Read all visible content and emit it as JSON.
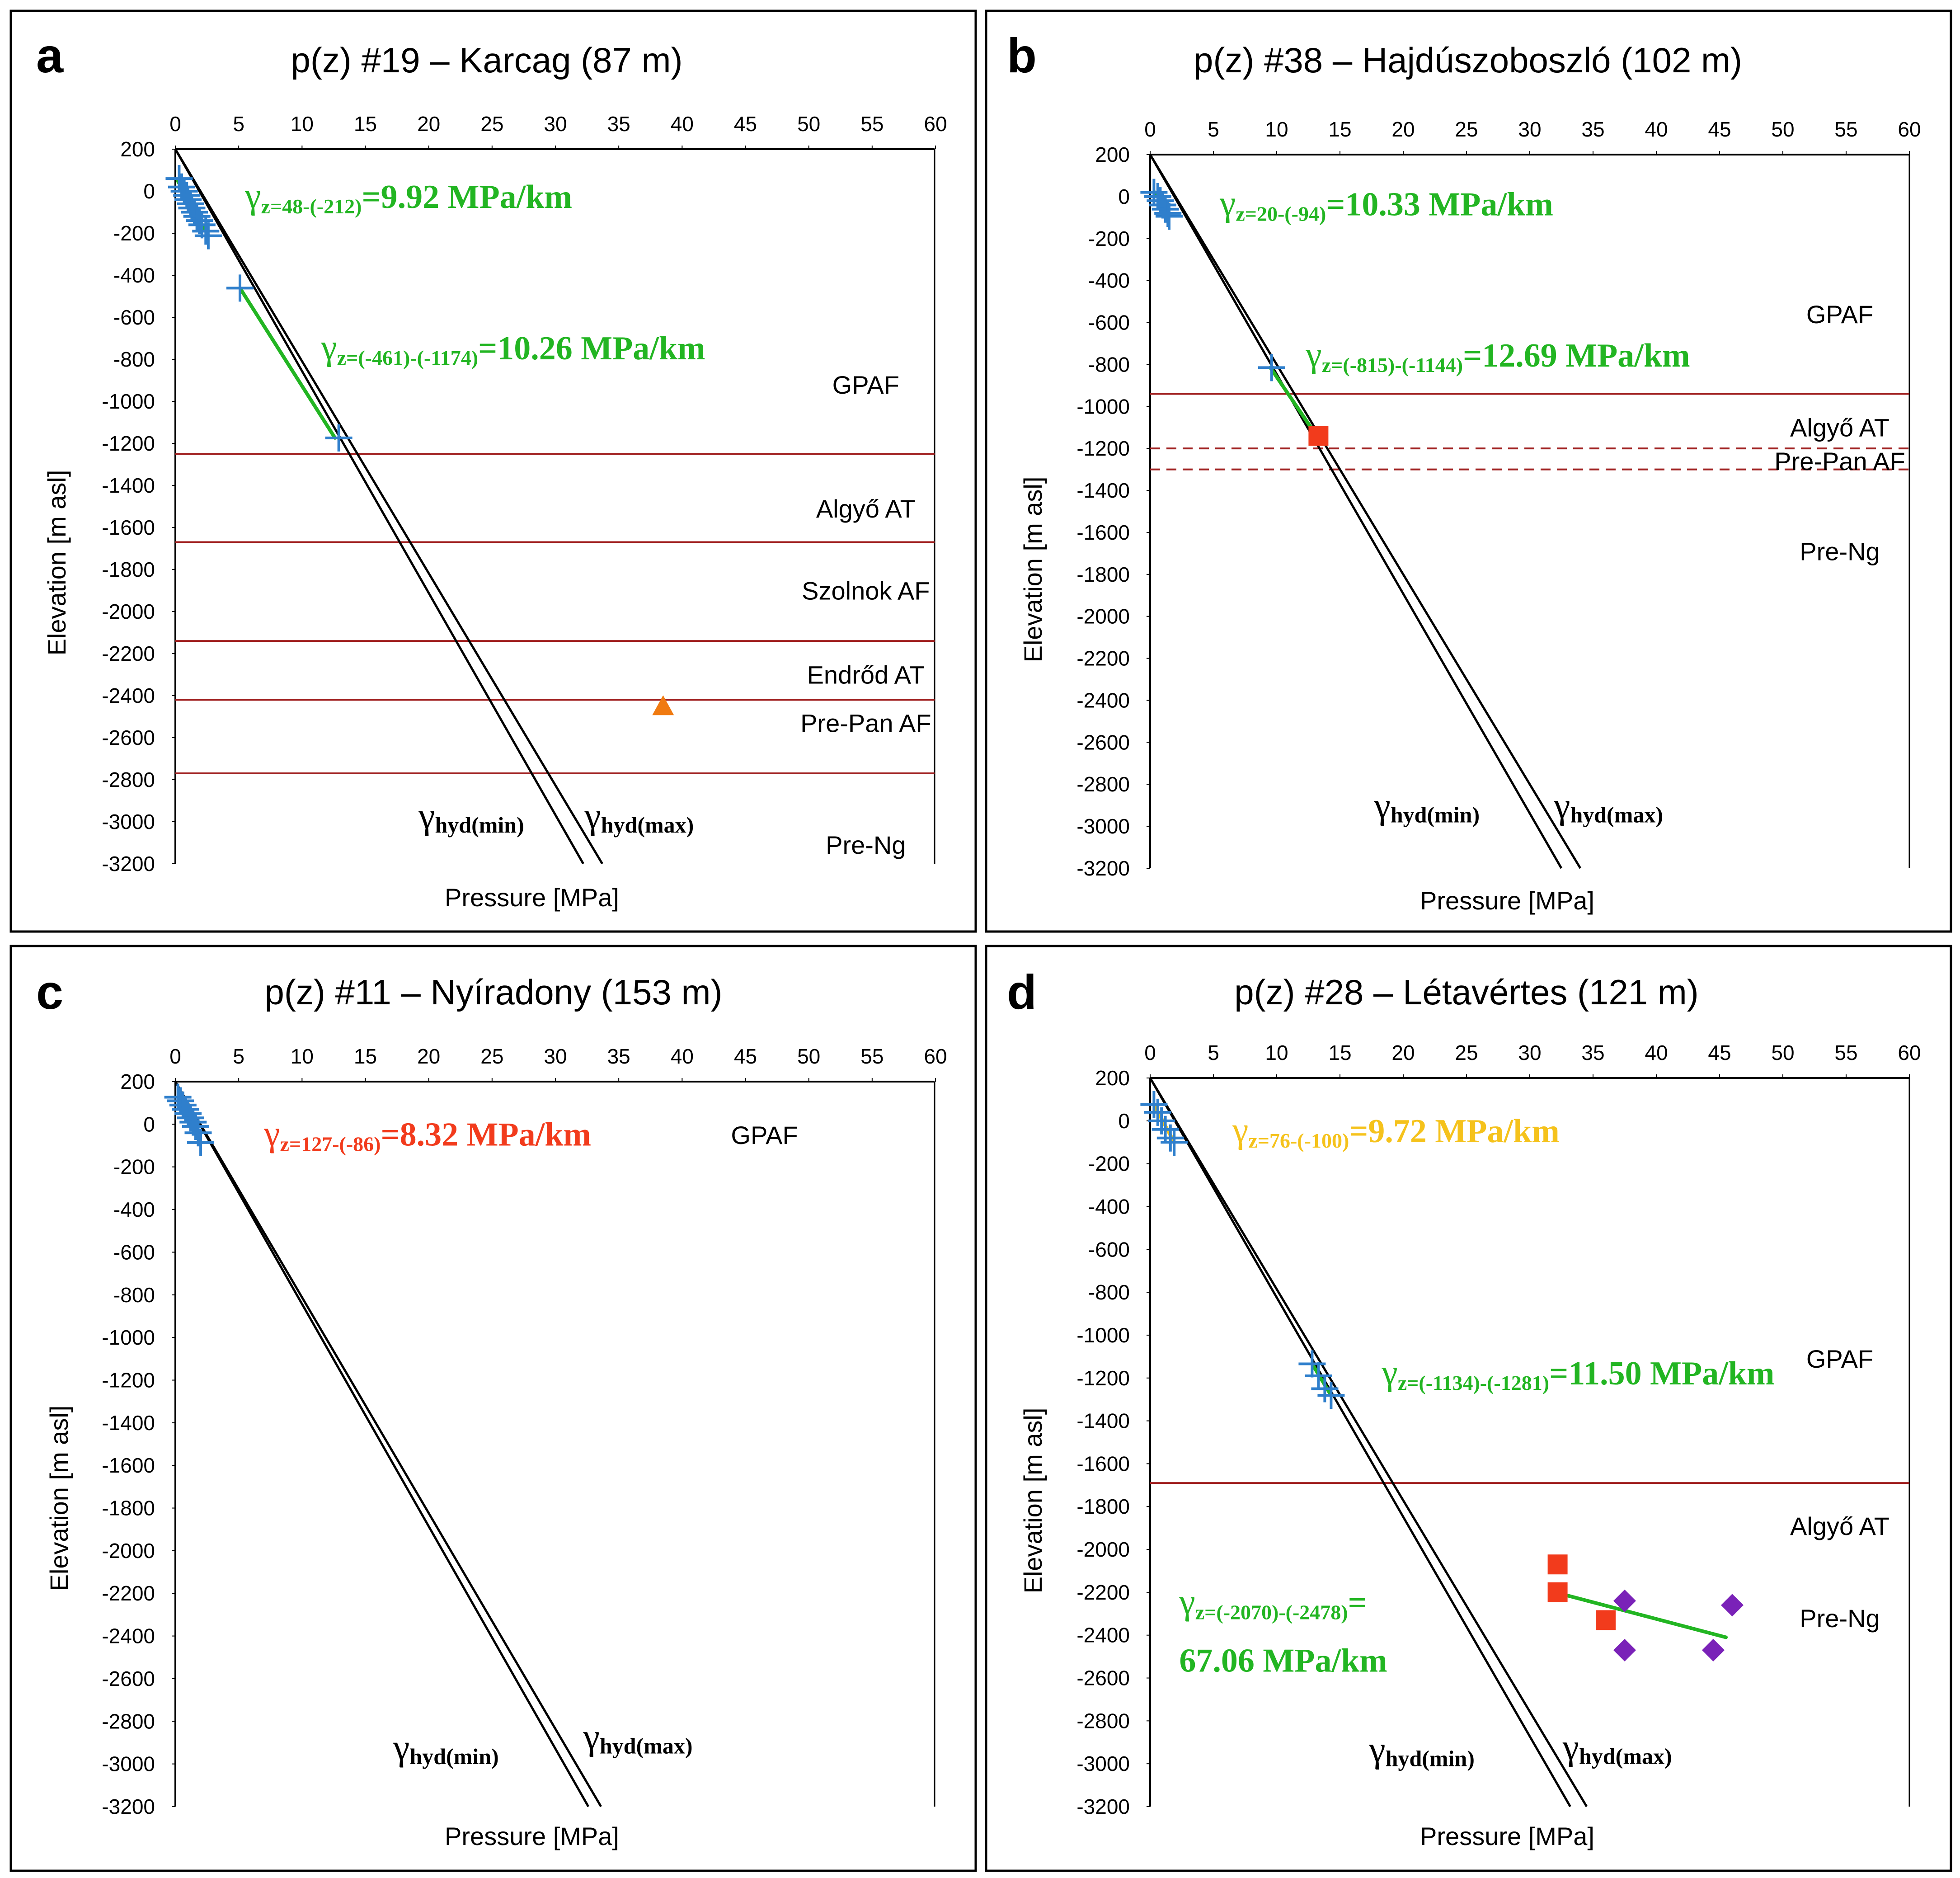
{
  "x_ticks": [
    "0",
    "5",
    "10",
    "15",
    "20",
    "25",
    "30",
    "35",
    "40",
    "45",
    "50",
    "55",
    "60"
  ],
  "y_ticks": [
    "200",
    "0",
    "-200",
    "-400",
    "-600",
    "-800",
    "-1000",
    "-1200",
    "-1400",
    "-1600",
    "-1800",
    "-2000",
    "-2200",
    "-2400",
    "-2600",
    "-2800",
    "-3000",
    "-3200"
  ],
  "colors": {
    "green": "#22b522",
    "red": "#f23b1c",
    "yellow": "#f5c21b",
    "formation_line": "#a02020",
    "point_blue": "#2f7fcc",
    "orange_triangle": "#f07a10",
    "purple": "#7a22b8",
    "square_red": "#f23b1c"
  },
  "chart_data": [
    {
      "type": "scatter",
      "panel_letter": "a",
      "title": "p(z) #19 – Karcag (87 m)",
      "xlabel": "Pressure [MPa]",
      "ylabel": "Elevation [m asl]",
      "xlim": [
        0,
        60
      ],
      "ylim": [
        -3200,
        200
      ],
      "hydrostatic_lines": [
        {
          "name": "γhyd(min)",
          "sub": "hyd(min)",
          "top_z": 200,
          "x_at_bottom": 32.2
        },
        {
          "name": "γhyd(max)",
          "sub": "hyd(max)",
          "top_z": 200,
          "x_at_bottom": 33.7
        }
      ],
      "hyd_labels": [
        {
          "sub": "hyd(min)",
          "x": 19.2,
          "z": -3030
        },
        {
          "sub": "hyd(max)",
          "x": 32.3,
          "z": -3030
        }
      ],
      "formation_boundaries": [
        {
          "z": -1250,
          "style": "solid"
        },
        {
          "z": -1670,
          "style": "solid"
        },
        {
          "z": -2140,
          "style": "solid"
        },
        {
          "z": -2420,
          "style": "solid"
        },
        {
          "z": -2770,
          "style": "solid"
        }
      ],
      "formation_labels": [
        {
          "text": "GPAF",
          "z": -920
        },
        {
          "text": "Algyő AT",
          "z": -1510
        },
        {
          "text": "Szolnok AF",
          "z": -1900
        },
        {
          "text": "Endrőd AT",
          "z": -2300
        },
        {
          "text": "Pre-Pan AF",
          "z": -2530
        },
        {
          "text": "Pre-Ng",
          "z": -3110
        }
      ],
      "point_sets": [
        {
          "marker": "plus",
          "color_key": "point_blue",
          "points": [
            [
              0.3,
              60
            ],
            [
              0.5,
              20
            ],
            [
              0.7,
              0
            ],
            [
              0.9,
              -20
            ],
            [
              1.0,
              -40
            ],
            [
              1.2,
              -60
            ],
            [
              1.3,
              -80
            ],
            [
              1.5,
              -100
            ],
            [
              1.7,
              -120
            ],
            [
              1.9,
              -140
            ],
            [
              2.1,
              -160
            ],
            [
              2.4,
              -190
            ],
            [
              2.6,
              -212
            ],
            [
              5.1,
              -461
            ],
            [
              12.9,
              -1174
            ]
          ]
        },
        {
          "marker": "triangle",
          "color_key": "orange_triangle",
          "points": [
            [
              38.5,
              -2450
            ]
          ]
        }
      ],
      "fits": [
        {
          "color_key": "green",
          "x1": 0.2,
          "z1": 48,
          "x2": 2.6,
          "z2": -212,
          "sub": "z=48-(-212)",
          "value": "=9.92 MPa/km",
          "label_x": 5.5,
          "label_z": -80,
          "big": 80,
          "subsize": 46,
          "valsize": 74
        },
        {
          "color_key": "green",
          "x1": 5.1,
          "z1": -461,
          "x2": 12.6,
          "z2": -1174,
          "sub": "z=(-461)-(-1174)",
          "value": "=10.26 MPa/km",
          "label_x": 11.5,
          "label_z": -800,
          "big": 80,
          "subsize": 46,
          "valsize": 74
        }
      ],
      "multiline_fit_label": null
    },
    {
      "type": "scatter",
      "panel_letter": "b",
      "title": "p(z) #38 – Hajdúszoboszló (102 m)",
      "xlabel": "Pressure [MPa]",
      "ylabel": "Elevation [m asl]",
      "xlim": [
        0,
        60
      ],
      "ylim": [
        -3200,
        200
      ],
      "hydrostatic_lines": [
        {
          "name": "γhyd(min)",
          "sub": "hyd(min)",
          "top_z": 200,
          "x_at_bottom": 32.5
        },
        {
          "name": "γhyd(max)",
          "sub": "hyd(max)",
          "top_z": 200,
          "x_at_bottom": 34.0
        }
      ],
      "hyd_labels": [
        {
          "sub": "hyd(min)",
          "x": 17.7,
          "z": -2960
        },
        {
          "sub": "hyd(max)",
          "x": 31.9,
          "z": -2960
        }
      ],
      "formation_boundaries": [
        {
          "z": -940,
          "style": "solid"
        },
        {
          "z": -1200,
          "style": "dashed"
        },
        {
          "z": -1300,
          "style": "dashed"
        }
      ],
      "formation_labels": [
        {
          "text": "GPAF",
          "z": -560
        },
        {
          "text": "Algyő AT",
          "z": -1100
        },
        {
          "text": "Pre-Pan AF",
          "z": -1260
        },
        {
          "text": "Pre-Ng",
          "z": -1690
        }
      ],
      "point_sets": [
        {
          "marker": "plus",
          "color_key": "point_blue",
          "points": [
            [
              0.3,
              20
            ],
            [
              0.6,
              0
            ],
            [
              0.8,
              -20
            ],
            [
              1.0,
              -40
            ],
            [
              1.2,
              -60
            ],
            [
              1.4,
              -80
            ],
            [
              1.5,
              -94
            ],
            [
              9.6,
              -815
            ]
          ]
        },
        {
          "marker": "square",
          "color_key": "square_red",
          "points": [
            [
              13.3,
              -1140
            ]
          ]
        }
      ],
      "fits": [
        {
          "color_key": "green",
          "x1": 0.4,
          "z1": 20,
          "x2": 1.5,
          "z2": -94,
          "sub": "z=20-(-94)",
          "value": "=10.33 MPa/km",
          "label_x": 5.5,
          "label_z": -90,
          "big": 80,
          "subsize": 46,
          "valsize": 74
        },
        {
          "color_key": "green",
          "x1": 9.5,
          "z1": -815,
          "x2": 13.2,
          "z2": -1144,
          "sub": "z=(-815)-(-1144)",
          "value": "=12.69 MPa/km",
          "label_x": 12.3,
          "label_z": -810,
          "big": 80,
          "subsize": 46,
          "valsize": 74
        }
      ],
      "multiline_fit_label": null
    },
    {
      "type": "scatter",
      "panel_letter": "c",
      "title": "p(z) #11 – Nyíradony (153 m)",
      "xlabel": "Pressure [MPa]",
      "ylabel": "Elevation [m asl]",
      "xlim": [
        0,
        60
      ],
      "ylim": [
        -3200,
        200
      ],
      "hydrostatic_lines": [
        {
          "name": "γhyd(min)",
          "sub": "hyd(min)",
          "top_z": 200,
          "x_at_bottom": 32.6
        },
        {
          "name": "γhyd(max)",
          "sub": "hyd(max)",
          "top_z": 200,
          "x_at_bottom": 33.6
        }
      ],
      "hyd_labels": [
        {
          "sub": "hyd(min)",
          "x": 17.2,
          "z": -2980
        },
        {
          "sub": "hyd(max)",
          "x": 32.2,
          "z": -2930
        }
      ],
      "formation_boundaries": [],
      "formation_labels": [
        {
          "text": "GPAF",
          "z": -50,
          "x_center": 46.5
        }
      ],
      "point_sets": [
        {
          "marker": "plus",
          "color_key": "point_blue",
          "points": [
            [
              0.2,
              127
            ],
            [
              0.4,
              110
            ],
            [
              0.6,
              90
            ],
            [
              0.8,
              70
            ],
            [
              1.0,
              50
            ],
            [
              1.2,
              30
            ],
            [
              1.4,
              10
            ],
            [
              1.6,
              -10
            ],
            [
              1.8,
              -40
            ],
            [
              2.0,
              -86
            ]
          ]
        }
      ],
      "fits": [
        {
          "color_key": "red",
          "x1": 0.3,
          "z1": 127,
          "x2": 2.0,
          "z2": -86,
          "sub": "z=127-(-86)",
          "value": "=8.32 MPa/km",
          "label_x": 7.0,
          "label_z": -100,
          "big": 80,
          "subsize": 46,
          "valsize": 74
        }
      ],
      "multiline_fit_label": null
    },
    {
      "type": "scatter",
      "panel_letter": "d",
      "title": "p(z) #28 – Létavértes (121 m)",
      "xlabel": "Pressure [MPa]",
      "ylabel": "Elevation [m asl]",
      "xlim": [
        0,
        60
      ],
      "ylim": [
        -3200,
        200
      ],
      "hydrostatic_lines": [
        {
          "name": "γhyd(min)",
          "sub": "hyd(min)",
          "top_z": 200,
          "x_at_bottom": 33.2
        },
        {
          "name": "γhyd(max)",
          "sub": "hyd(max)",
          "top_z": 200,
          "x_at_bottom": 34.5
        }
      ],
      "hyd_labels": [
        {
          "sub": "hyd(min)",
          "x": 17.3,
          "z": -2990
        },
        {
          "sub": "hyd(max)",
          "x": 32.6,
          "z": -2980
        }
      ],
      "formation_boundaries": [
        {
          "z": -1690,
          "style": "solid"
        }
      ],
      "formation_labels": [
        {
          "text": "GPAF",
          "z": -1110
        },
        {
          "text": "Algyő AT",
          "z": -1890
        },
        {
          "text": "Pre-Ng",
          "z": -2320
        }
      ],
      "point_sets": [
        {
          "marker": "plus",
          "color_key": "point_blue",
          "points": [
            [
              0.3,
              76
            ],
            [
              0.6,
              40
            ],
            [
              0.9,
              0
            ],
            [
              1.2,
              -40
            ],
            [
              1.6,
              -80
            ],
            [
              1.9,
              -100
            ],
            [
              12.8,
              -1134
            ],
            [
              13.3,
              -1190
            ],
            [
              13.8,
              -1250
            ],
            [
              14.3,
              -1281
            ]
          ]
        },
        {
          "marker": "square",
          "color_key": "square_red",
          "points": [
            [
              32.2,
              -2070
            ],
            [
              32.2,
              -2200
            ],
            [
              36.0,
              -2330
            ]
          ]
        },
        {
          "marker": "diamond",
          "color_key": "purple",
          "points": [
            [
              37.5,
              -2240
            ],
            [
              37.5,
              -2470
            ],
            [
              44.5,
              -2470
            ],
            [
              46.0,
              -2260
            ]
          ]
        }
      ],
      "fits": [
        {
          "color_key": "yellow",
          "x1": 0.3,
          "z1": 76,
          "x2": 1.9,
          "z2": -100,
          "sub": "z=76-(-100)",
          "value": "=9.72 MPa/km",
          "label_x": 6.5,
          "label_z": -100,
          "big": 80,
          "subsize": 46,
          "valsize": 74
        },
        {
          "color_key": "green",
          "x1": 12.8,
          "z1": -1134,
          "x2": 14.3,
          "z2": -1281,
          "sub": "z=(-1134)-(-1281)",
          "value": "=11.50 MPa/km",
          "label_x": 18.3,
          "label_z": -1230,
          "big": 80,
          "subsize": 46,
          "valsize": 74
        },
        {
          "color_key": "green",
          "x1": 32.0,
          "z1": -2200,
          "x2": 45.5,
          "z2": -2410,
          "sub": null,
          "value": null,
          "label_x": 0,
          "label_z": 0,
          "big": 0,
          "subsize": 0,
          "valsize": 0
        }
      ],
      "multiline_fit_label": {
        "color_key": "green",
        "sub": "z=(-2070)-(-2478)",
        "line1_suffix": "=",
        "line2": "67.06 MPa/km",
        "x": 2.3,
        "z1": -2300,
        "z2": -2570
      }
    }
  ]
}
